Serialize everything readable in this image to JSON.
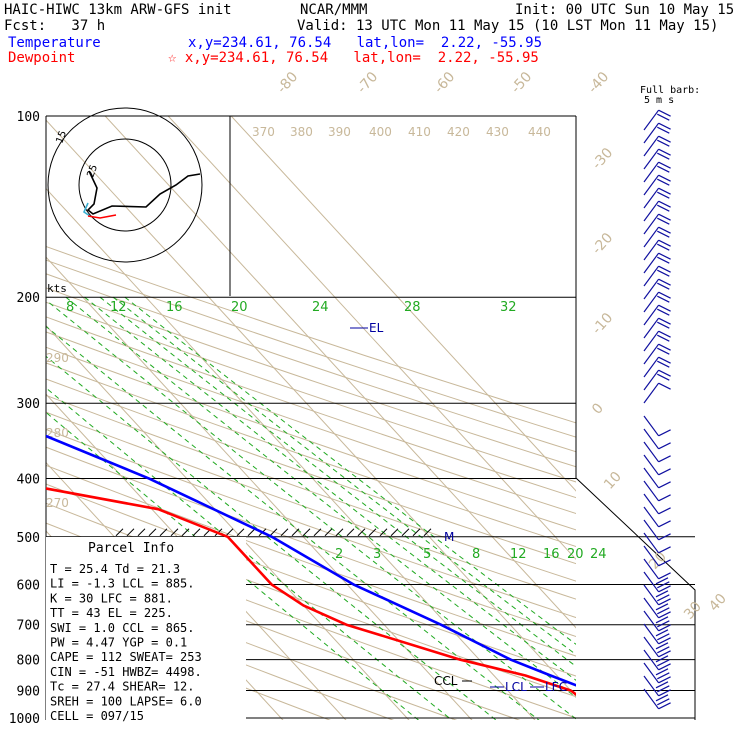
{
  "header": {
    "title": "HAIC-HIWC 13km ARW-GFS init",
    "org": "NCAR/MMM",
    "init": "Init: 00 UTC Sun 10 May 15",
    "fcst": "Fcst:   37 h",
    "valid": "Valid: 13 UTC Mon 11 May 15 (10 LST Mon 11 May 15)",
    "temp_label": "Temperature",
    "temp_loc": "x,y=234.61, 76.54   lat,lon=  2.22, -55.95",
    "dew_label": "Dewpoint",
    "dew_loc": "☆ x,y=234.61, 76.54   lat,lon=  2.22, -55.95",
    "barb_note_1": "Full barb:",
    "barb_note_2": "5 m s",
    "hodo_units": "kts"
  },
  "colors": {
    "temperature": "#0000ff",
    "dewpoint": "#ff0000",
    "isotherm": "#c8b89a",
    "mixing_ratio": "#22aa22",
    "barbs": "#1010a0"
  },
  "chart_data": {
    "type": "line",
    "y_axis": "pressure",
    "pressure_ticks": [
      {
        "label": "100",
        "p": 100
      },
      {
        "label": "200",
        "p": 200
      },
      {
        "label": "300",
        "p": 300
      },
      {
        "label": "400",
        "p": 400
      },
      {
        "label": "500",
        "p": 500
      },
      {
        "label": "600",
        "p": 600
      },
      {
        "label": "700",
        "p": 700
      },
      {
        "label": "800",
        "p": 800
      },
      {
        "label": "900",
        "p": 900
      },
      {
        "label": "1000",
        "p": 1000
      }
    ],
    "isotherm_labels": [
      "-80",
      "-70",
      "-60",
      "-50",
      "-40",
      "-30",
      "-20",
      "-10",
      "0",
      "10",
      "20",
      "30",
      "40"
    ],
    "theta_labels": [
      "370",
      "380",
      "390",
      "400",
      "410",
      "420",
      "430",
      "440",
      "290",
      "280",
      "270"
    ],
    "mixing_ratio_labels": [
      "8",
      "12",
      "16",
      "20",
      "24",
      "28",
      "32",
      "2",
      "3",
      "5",
      "8",
      "12",
      "16",
      "20",
      "24"
    ],
    "series": [
      {
        "name": "Temperature",
        "points": [
          [
            100,
            -79
          ],
          [
            150,
            -70
          ],
          [
            200,
            -57
          ],
          [
            250,
            -44
          ],
          [
            300,
            -34
          ],
          [
            400,
            -16
          ],
          [
            500,
            -5
          ],
          [
            600,
            1
          ],
          [
            700,
            9
          ],
          [
            800,
            15
          ],
          [
            850,
            19
          ],
          [
            900,
            23
          ],
          [
            950,
            26
          ],
          [
            975,
            27
          ]
        ]
      },
      {
        "name": "Dewpoint",
        "points": [
          [
            100,
            -92
          ],
          [
            150,
            -89
          ],
          [
            200,
            -84
          ],
          [
            250,
            -75
          ],
          [
            300,
            -60
          ],
          [
            350,
            -45
          ],
          [
            370,
            -57
          ],
          [
            400,
            -41
          ],
          [
            450,
            -19
          ],
          [
            500,
            -12
          ],
          [
            600,
            -12
          ],
          [
            650,
            -10
          ],
          [
            700,
            -6
          ],
          [
            800,
            7
          ],
          [
            850,
            15
          ],
          [
            900,
            20
          ],
          [
            950,
            21
          ],
          [
            975,
            21
          ]
        ]
      }
    ],
    "annotations": [
      "EL",
      "M",
      "CCL",
      "LCL",
      "LFC"
    ]
  },
  "parcel_info": {
    "title": "Parcel Info",
    "rows": [
      "T   =   25.4  Td  =  21.3",
      "LI  =   -1.3  LCL =  885.",
      "K   =     30  LFC =  881.",
      "TT  =     43  EL  =  225.",
      "SWI =    1.0  CCL =  865.",
      "PW  =   4.47  YGP =   0.1",
      "CAPE =   112  SWEAT=  253",
      "CIN  =   -51  HWBZ= 4498.",
      "Tc  =   27.4  SHEAR=  12.",
      "SREH =   100  LAPSE=  6.0",
      "CELL = 097/15"
    ]
  },
  "hodograph": {
    "ring_labels": [
      "15",
      "25"
    ]
  }
}
